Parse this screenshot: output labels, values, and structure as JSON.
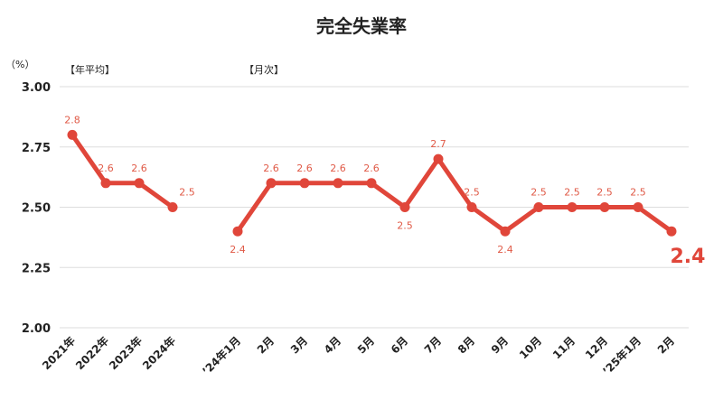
{
  "chart_data": {
    "type": "line",
    "title": "完全失業率",
    "unit_label": "（%）",
    "section_labels": {
      "annual": "【年平均】",
      "monthly": "【月次】"
    },
    "ylim": [
      2.0,
      3.0
    ],
    "y_ticks": [
      "3.00",
      "2.75",
      "2.50",
      "2.25",
      "2.00"
    ],
    "series": [
      {
        "group": "annual",
        "categories": [
          "2021年",
          "2022年",
          "2023年",
          "2024年"
        ],
        "values": [
          2.8,
          2.6,
          2.6,
          2.5
        ],
        "labels": [
          "2.8",
          "2.6",
          "2.6",
          "2.5"
        ]
      },
      {
        "group": "monthly",
        "categories": [
          "’24年1月",
          "2月",
          "3月",
          "4月",
          "5月",
          "6月",
          "7月",
          "8月",
          "9月",
          "10月",
          "11月",
          "12月",
          "’25年1月",
          "2月"
        ],
        "values": [
          2.4,
          2.6,
          2.6,
          2.6,
          2.6,
          2.5,
          2.7,
          2.5,
          2.4,
          2.5,
          2.5,
          2.5,
          2.5,
          2.4
        ],
        "labels": [
          "2.4",
          "2.6",
          "2.6",
          "2.6",
          "2.6",
          "2.5",
          "2.7",
          "2.5",
          "2.4",
          "2.5",
          "2.5",
          "2.5",
          "2.5",
          "2.4"
        ]
      }
    ],
    "latest_value": "2.4",
    "colors": {
      "line": "#e0463a",
      "label": "#e05a47",
      "grid": "#dddddd",
      "text": "#222222"
    },
    "grid": true
  }
}
